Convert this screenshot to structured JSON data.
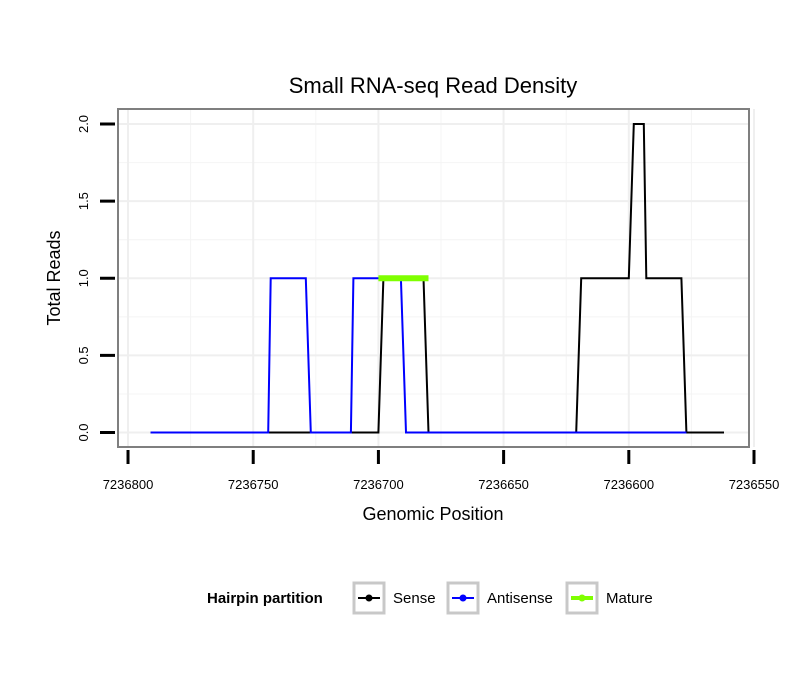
{
  "chart_data": {
    "type": "line",
    "title": "Small RNA-seq Read Density",
    "xlabel": "Genomic Position",
    "ylabel": "Total Reads",
    "x_reversed": true,
    "xlim": [
      7236804,
      7236552
    ],
    "ylim": [
      0,
      2
    ],
    "x_ticks": [
      7236800,
      7236750,
      7236700,
      7236650,
      7236600,
      7236550
    ],
    "y_ticks": [
      0.0,
      0.5,
      1.0,
      1.5,
      2.0
    ],
    "y_tick_labels": [
      "0.0",
      "0.5",
      "1.0",
      "1.5",
      "2.0"
    ],
    "grid": true,
    "series": [
      {
        "name": "Sense",
        "color": "#000000",
        "x": [
          7236791,
          7236700,
          7236698,
          7236682,
          7236680,
          7236621,
          7236619,
          7236600,
          7236598,
          7236594,
          7236593,
          7236579,
          7236577,
          7236562
        ],
        "y": [
          0,
          0,
          1,
          1,
          0,
          0,
          1,
          1,
          2,
          2,
          1,
          1,
          0,
          0
        ]
      },
      {
        "name": "Antisense",
        "color": "#0000ff",
        "x": [
          7236791,
          7236744,
          7236743,
          7236729,
          7236727,
          7236711,
          7236710,
          7236691,
          7236689,
          7236577
        ],
        "y": [
          0,
          0,
          1,
          1,
          0,
          0,
          1,
          1,
          0,
          0
        ]
      },
      {
        "name": "Mature",
        "color": "#7fff00",
        "x": [
          7236700,
          7236680
        ],
        "y": [
          1,
          1
        ]
      }
    ],
    "legend": {
      "title": "Hairpin partition",
      "position": "bottom",
      "entries": [
        {
          "label": "Sense",
          "color": "#000000"
        },
        {
          "label": "Antisense",
          "color": "#0000ff"
        },
        {
          "label": "Mature",
          "color": "#7fff00"
        }
      ]
    }
  }
}
